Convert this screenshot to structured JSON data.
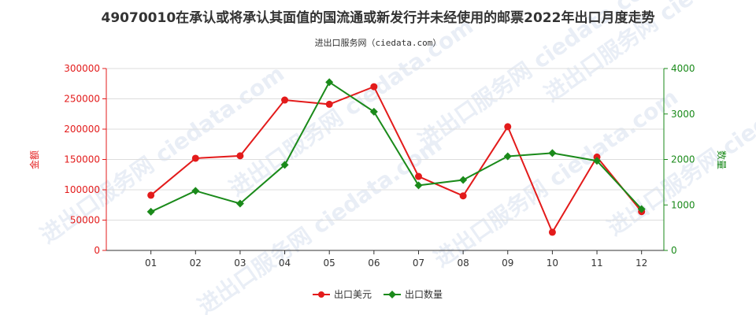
{
  "colors": {
    "usd_series": "#e31b1b",
    "qty_series": "#1a8a1a",
    "grid": "#dddddd",
    "axis": "#333333",
    "watermark": "#e9eef6"
  },
  "chart_data": {
    "type": "line",
    "title": "49070010在承认或将承认其面值的国流通或新发行并未经使用的邮票2022年出口月度走势",
    "subtitle": "进出口服务网（ciedata.com）",
    "watermark": "进出口服务网 ciedata.com",
    "categories": [
      "01",
      "02",
      "03",
      "04",
      "05",
      "06",
      "07",
      "08",
      "09",
      "10",
      "11",
      "12"
    ],
    "left_axis": {
      "label": "金额",
      "ylim": [
        0,
        300000
      ],
      "ticks": [
        "0",
        "50000",
        "100000",
        "150000",
        "200000",
        "250000",
        "300000"
      ]
    },
    "right_axis": {
      "label": "数量",
      "ylim": [
        0,
        4000
      ],
      "ticks": [
        "0",
        "1000",
        "2000",
        "3000",
        "4000"
      ]
    },
    "series": [
      {
        "name": "出口美元",
        "axis": "left",
        "color": "#e31b1b",
        "values": [
          91000,
          152000,
          156000,
          248000,
          241000,
          270000,
          122000,
          90000,
          204000,
          30000,
          154000,
          64000
        ]
      },
      {
        "name": "出口数量",
        "axis": "right",
        "color": "#1a8a1a",
        "values": [
          850,
          1310,
          1030,
          1880,
          3700,
          3050,
          1430,
          1550,
          2070,
          2140,
          1970,
          910
        ]
      }
    ],
    "grid": "horizontal",
    "legend_position": "bottom-center"
  }
}
